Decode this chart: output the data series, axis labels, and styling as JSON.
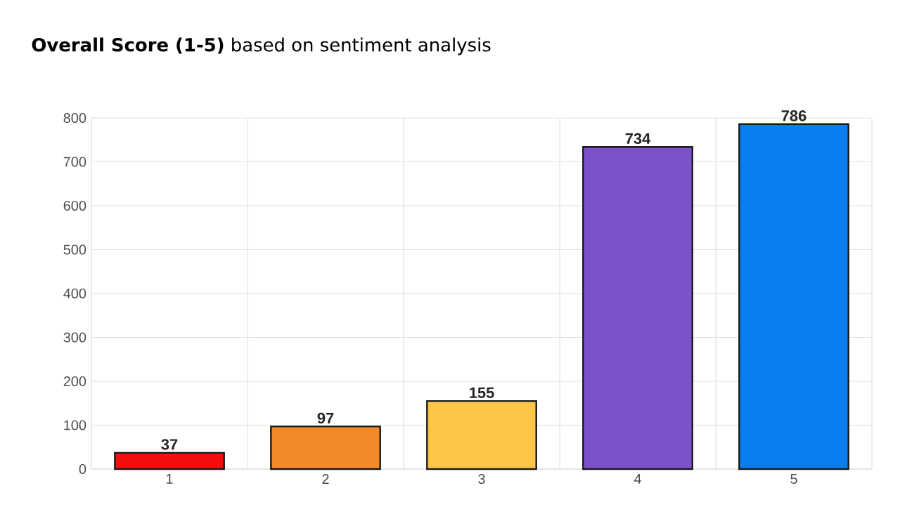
{
  "chart_data": {
    "type": "bar",
    "title": "**Overall Score (1-5)** based on sentiment analysis",
    "categories": [
      "1",
      "2",
      "3",
      "4",
      "5"
    ],
    "values": [
      37,
      97,
      155,
      734,
      786
    ],
    "colors": [
      "#f40d0d",
      "#f28a2a",
      "#fdc646",
      "#7b52c9",
      "#0a7ef0"
    ],
    "ylim": [
      0,
      800
    ],
    "yticks": [
      0,
      100,
      200,
      300,
      400,
      500,
      600,
      700,
      800
    ],
    "grid": true,
    "data_labels": true
  }
}
